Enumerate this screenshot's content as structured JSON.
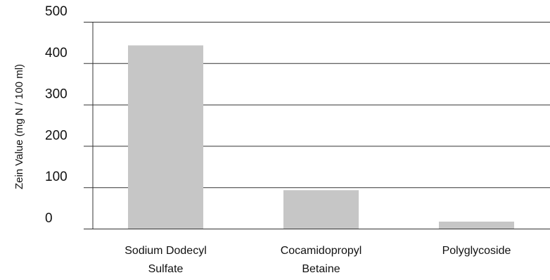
{
  "chart_data": {
    "type": "bar",
    "title": "",
    "xlabel": "",
    "ylabel": "Zein Value (mg N / 100 ml)",
    "categories": [
      [
        "Sodium Dodecyl",
        "Sulfate"
      ],
      [
        "Cocamidopropyl",
        "Betaine"
      ],
      [
        "Polyglycoside"
      ]
    ],
    "values": [
      443,
      93,
      17
    ],
    "ylim": [
      0,
      500
    ],
    "yticks": [
      0,
      100,
      200,
      300,
      400,
      500
    ],
    "grid": true,
    "legend": "none",
    "colors": {
      "bar": "#c6c6c6",
      "grid": "#333333",
      "text": "#111111"
    }
  }
}
